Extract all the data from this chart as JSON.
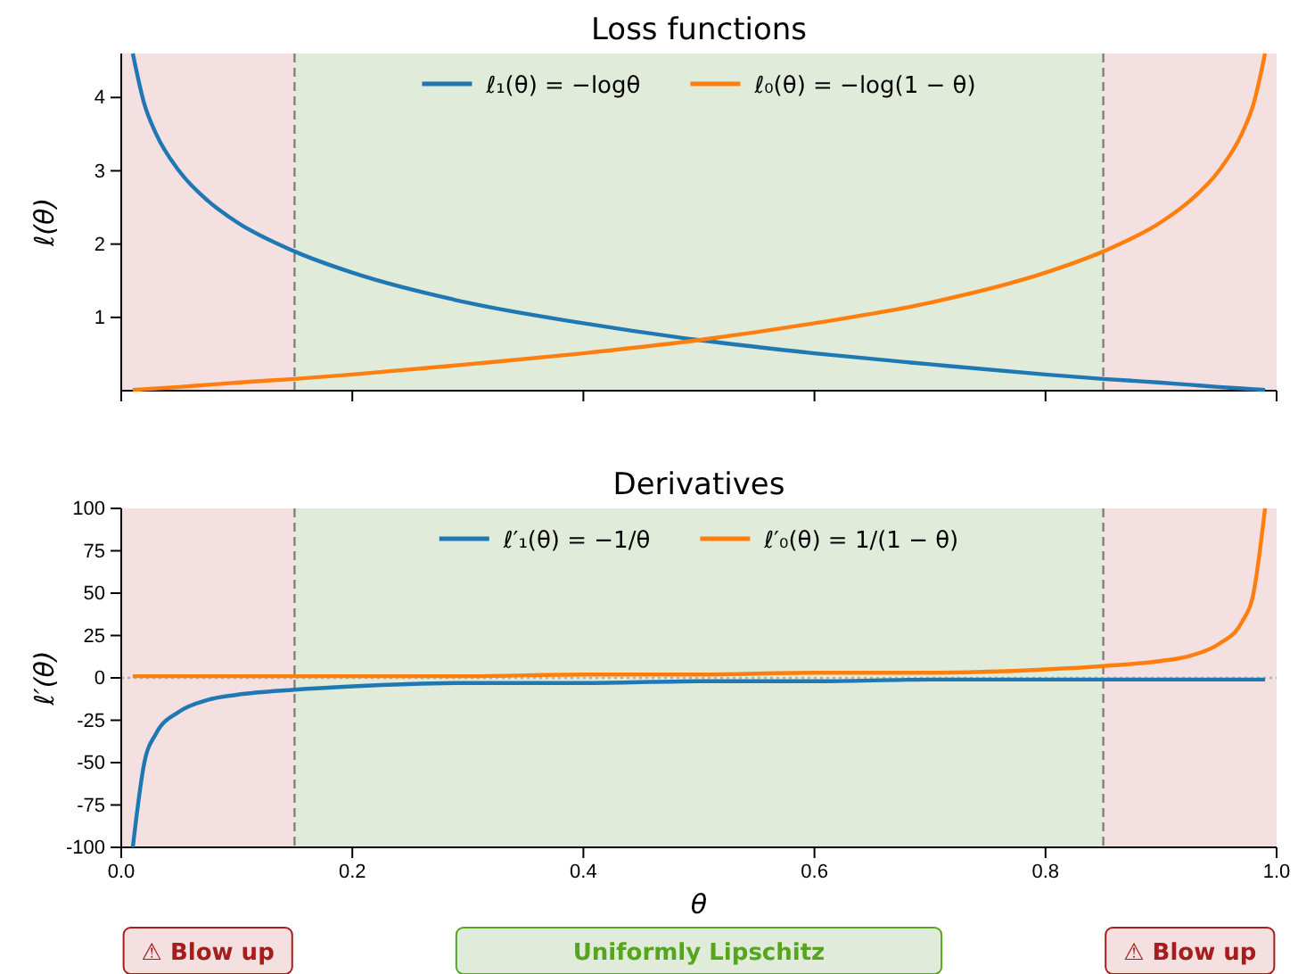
{
  "chart_data": [
    {
      "type": "line",
      "title": "Loss functions",
      "ylabel": "ℓ(θ)",
      "xlim": [
        0,
        1
      ],
      "ylim": [
        0,
        4.6
      ],
      "xticks": [
        {
          "value": 0,
          "label": null
        },
        {
          "value": 0.2,
          "label": null
        },
        {
          "value": 0.4,
          "label": null
        },
        {
          "value": 0.6,
          "label": null
        },
        {
          "value": 0.8,
          "label": null
        },
        {
          "value": 1,
          "label": null
        }
      ],
      "yticks": [
        1,
        2,
        3,
        4
      ],
      "tick_labels": "y",
      "legend": "top",
      "line_style": "solid",
      "x": [
        0.01,
        0.02,
        0.03,
        0.05,
        0.075,
        0.1,
        0.15,
        0.2,
        0.3,
        0.4,
        0.5,
        0.6,
        0.7,
        0.8,
        0.85,
        0.9,
        0.925,
        0.95,
        0.97,
        0.98,
        0.99
      ],
      "series": [
        {
          "name": "ℓ₁(θ) = −logθ",
          "color": "#1f77b4",
          "values": [
            4.6,
            3.91,
            3.51,
            3.0,
            2.59,
            2.3,
            1.9,
            1.61,
            1.2,
            0.92,
            0.69,
            0.51,
            0.36,
            0.22,
            0.16,
            0.11,
            0.08,
            0.05,
            0.03,
            0.02,
            0.01
          ]
        },
        {
          "name": "ℓ₀(θ) = −log(1 − θ)",
          "color": "#ff7f0e",
          "values": [
            0.01,
            0.02,
            0.03,
            0.05,
            0.08,
            0.11,
            0.16,
            0.22,
            0.36,
            0.51,
            0.69,
            0.92,
            1.2,
            1.61,
            1.9,
            2.3,
            2.59,
            3.0,
            3.51,
            3.91,
            4.6
          ]
        }
      ],
      "ref_lines": [
        {
          "axis": "x",
          "value": 0.15,
          "color": "#808080",
          "line_style": "dashed"
        },
        {
          "axis": "x",
          "value": 0.85,
          "color": "#808080",
          "line_style": "dashed"
        }
      ],
      "bands": [
        {
          "axis": "x",
          "from": 0,
          "to": 0.15,
          "color": "#f4e0e0"
        },
        {
          "axis": "x",
          "from": 0.15,
          "to": 0.85,
          "color": "#e1ebda"
        },
        {
          "axis": "x",
          "from": 0.85,
          "to": 1,
          "color": "#f4e0e0"
        }
      ]
    },
    {
      "type": "line",
      "title": "Derivatives",
      "xlabel": "θ",
      "ylabel": "ℓ′(θ)",
      "xlim": [
        0,
        1
      ],
      "ylim": [
        -100,
        100
      ],
      "xticks": [
        {
          "value": 0,
          "label": "0.0"
        },
        {
          "value": 0.2,
          "label": "0.2"
        },
        {
          "value": 0.4,
          "label": "0.4"
        },
        {
          "value": 0.6,
          "label": "0.6"
        },
        {
          "value": 0.8,
          "label": "0.8"
        },
        {
          "value": 1,
          "label": "1.0"
        }
      ],
      "yticks": [
        -100,
        -75,
        -50,
        -25,
        0,
        25,
        50,
        75,
        100
      ],
      "legend": "top",
      "line_style": "solid",
      "x": [
        0.01,
        0.02,
        0.03,
        0.05,
        0.075,
        0.1,
        0.15,
        0.2,
        0.3,
        0.4,
        0.5,
        0.6,
        0.7,
        0.8,
        0.85,
        0.9,
        0.925,
        0.95,
        0.97,
        0.98,
        0.99
      ],
      "series": [
        {
          "name": "ℓ′₁(θ) = −1/θ",
          "color": "#1f77b4",
          "values": [
            -100,
            -50,
            -33,
            -20,
            -13,
            -10,
            -7,
            -5,
            -3,
            -3,
            -2,
            -2,
            -1,
            -1,
            -1,
            -1,
            -1,
            -1,
            -1,
            -1,
            -1
          ]
        },
        {
          "name": "ℓ′₀(θ) = 1/(1 − θ)",
          "color": "#ff7f0e",
          "values": [
            1,
            1,
            1,
            1,
            1,
            1,
            1,
            1,
            1,
            2,
            2,
            3,
            3,
            5,
            7,
            10,
            13,
            20,
            33,
            50,
            100
          ]
        }
      ],
      "ref_lines": [
        {
          "axis": "y",
          "value": 0,
          "color": "#b0b0b0",
          "line_style": "dotted"
        },
        {
          "axis": "x",
          "value": 0.15,
          "color": "#808080",
          "line_style": "dashed"
        },
        {
          "axis": "x",
          "value": 0.85,
          "color": "#808080",
          "line_style": "dashed"
        }
      ],
      "bands": [
        {
          "axis": "x",
          "from": 0,
          "to": 0.15,
          "color": "#f4e0e0"
        },
        {
          "axis": "x",
          "from": 0.15,
          "to": 0.85,
          "color": "#e1ebda"
        },
        {
          "axis": "x",
          "from": 0.85,
          "to": 1,
          "color": "#f4e0e0"
        }
      ],
      "annotations": [
        "⚠ Blow up",
        "Uniformly Lipschitz",
        "⚠ Blow up"
      ]
    }
  ]
}
